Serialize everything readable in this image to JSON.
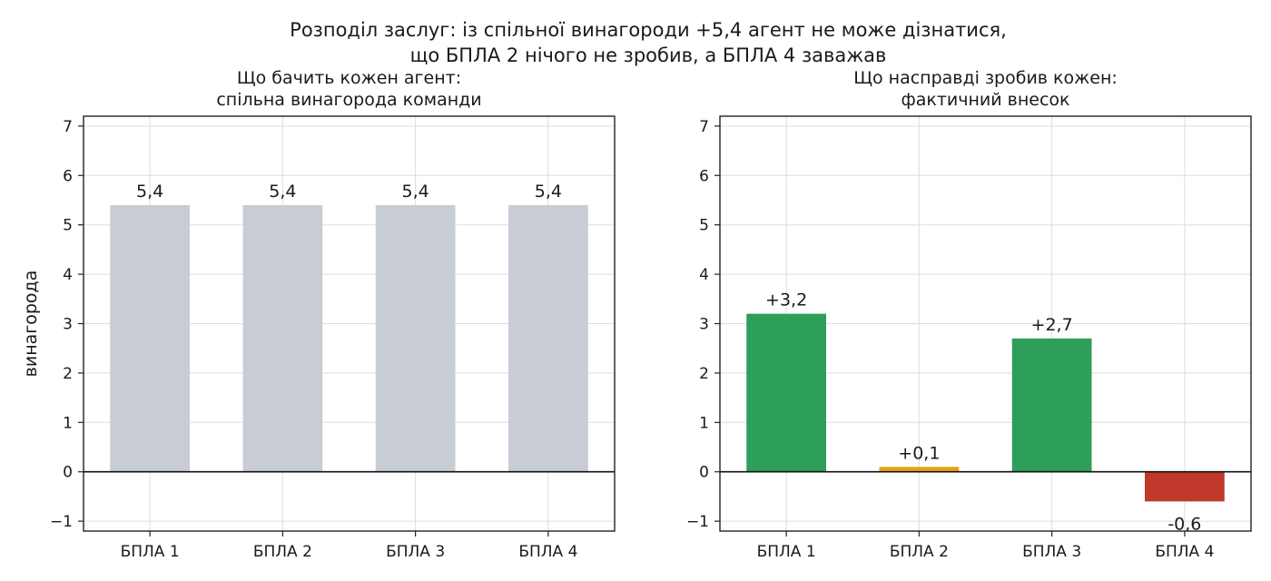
{
  "suptitle_line1": "Розподіл заслуг: із спільної винагороди +5,4 агент не може дізнатися,",
  "suptitle_line2": "що БПЛА 2 нічого не зробив, а БПЛА 4 заважав",
  "chart_data": [
    {
      "type": "bar",
      "title_line1": "Що бачить кожен агент:",
      "title_line2": "спільна винагорода команди",
      "ylabel": "винагорода",
      "xlabel": "",
      "categories": [
        "БПЛА 1",
        "БПЛА 2",
        "БПЛА 3",
        "БПЛА 4"
      ],
      "values": [
        5.4,
        5.4,
        5.4,
        5.4
      ],
      "data_labels": [
        "5,4",
        "5,4",
        "5,4",
        "5,4"
      ],
      "colors": [
        "#c8ccd4",
        "#c8ccd4",
        "#c8ccd4",
        "#c8ccd4"
      ],
      "ylim": [
        -1.2,
        7.2
      ],
      "yticks": [
        -1,
        0,
        1,
        2,
        3,
        4,
        5,
        6,
        7
      ],
      "ytick_labels": [
        "−1",
        "0",
        "1",
        "2",
        "3",
        "4",
        "5",
        "6",
        "7"
      ],
      "grid": true
    },
    {
      "type": "bar",
      "title_line1": "Що насправді зробив кожен:",
      "title_line2": "фактичний внесок",
      "ylabel": "",
      "xlabel": "",
      "categories": [
        "БПЛА 1",
        "БПЛА 2",
        "БПЛА 3",
        "БПЛА 4"
      ],
      "values": [
        3.2,
        0.1,
        2.7,
        -0.6
      ],
      "data_labels": [
        "+3,2",
        "+0,1",
        "+2,7",
        "-0,6"
      ],
      "colors": [
        "#2e9e5b",
        "#e8a317",
        "#2e9e5b",
        "#c0392b"
      ],
      "ylim": [
        -1.2,
        7.2
      ],
      "yticks": [
        -1,
        0,
        1,
        2,
        3,
        4,
        5,
        6,
        7
      ],
      "ytick_labels": [
        "−1",
        "0",
        "1",
        "2",
        "3",
        "4",
        "5",
        "6",
        "7"
      ],
      "grid": true
    }
  ]
}
